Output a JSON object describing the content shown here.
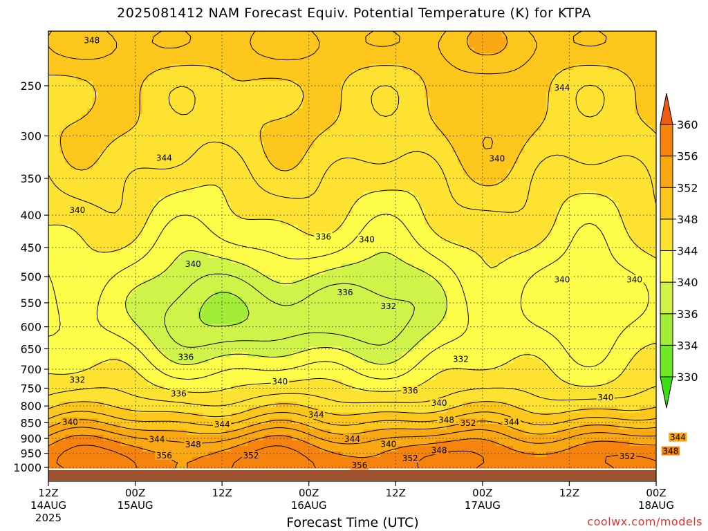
{
  "chart_data": {
    "type": "heatmap",
    "title": "2025081412 NAM Forecast Equiv. Potential Temperature (K) for KTPA",
    "xlabel": "Forecast Time (UTC)",
    "ylabel": "",
    "credit": "coolwx.com/models",
    "y_ticks": [
      250,
      300,
      350,
      400,
      450,
      500,
      550,
      600,
      650,
      700,
      750,
      800,
      850,
      900,
      950,
      1000
    ],
    "y_axis": "pressure, inverted, log-scaled",
    "x_ticks": [
      {
        "label": "12Z",
        "date": "14AUG",
        "year": "2025"
      },
      {
        "label": "00Z",
        "date": "15AUG",
        "year": ""
      },
      {
        "label": "12Z",
        "date": "",
        "year": ""
      },
      {
        "label": "00Z",
        "date": "16AUG",
        "year": ""
      },
      {
        "label": "12Z",
        "date": "",
        "year": ""
      },
      {
        "label": "00Z",
        "date": "17AUG",
        "year": ""
      },
      {
        "label": "12Z",
        "date": "",
        "year": ""
      },
      {
        "label": "00Z",
        "date": "18AUG",
        "year": ""
      }
    ],
    "grid": true,
    "colorbar": {
      "levels": [
        330,
        334,
        336,
        340,
        344,
        348,
        352,
        356,
        360
      ],
      "colors": [
        "#6ee826",
        "#a2ed37",
        "#d0f34a",
        "#fdfc48",
        "#fde232",
        "#fcc61d",
        "#f9a712",
        "#f5830e",
        "#ef5b10"
      ],
      "under_color": "#39df10"
    },
    "contour_labels": [
      {
        "text": "348",
        "time_h": 6,
        "p": 212
      },
      {
        "text": "344",
        "time_h": 71,
        "p": 252
      },
      {
        "text": "344",
        "time_h": 16,
        "p": 325
      },
      {
        "text": "340",
        "time_h": 62,
        "p": 326
      },
      {
        "text": "340",
        "time_h": 4,
        "p": 393
      },
      {
        "text": "336",
        "time_h": 38,
        "p": 433
      },
      {
        "text": "340",
        "time_h": 44,
        "p": 437
      },
      {
        "text": "340",
        "time_h": 20,
        "p": 478
      },
      {
        "text": "340",
        "time_h": 71,
        "p": 506
      },
      {
        "text": "340",
        "time_h": 81,
        "p": 506
      },
      {
        "text": "336",
        "time_h": 41,
        "p": 530
      },
      {
        "text": "332",
        "time_h": 47,
        "p": 557
      },
      {
        "text": "336",
        "time_h": 19,
        "p": 670
      },
      {
        "text": "332",
        "time_h": 57,
        "p": 675
      },
      {
        "text": "332",
        "time_h": 4,
        "p": 728
      },
      {
        "text": "340",
        "time_h": 32,
        "p": 732
      },
      {
        "text": "336",
        "time_h": 18,
        "p": 765
      },
      {
        "text": "336",
        "time_h": 50,
        "p": 757
      },
      {
        "text": "340",
        "time_h": 54,
        "p": 792
      },
      {
        "text": "340",
        "time_h": 77,
        "p": 776
      },
      {
        "text": "340",
        "time_h": 3,
        "p": 848
      },
      {
        "text": "344",
        "time_h": 24,
        "p": 856
      },
      {
        "text": "344",
        "time_h": 37,
        "p": 826
      },
      {
        "text": "348",
        "time_h": 55,
        "p": 842
      },
      {
        "text": "352",
        "time_h": 58,
        "p": 851
      },
      {
        "text": "344",
        "time_h": 64,
        "p": 848
      },
      {
        "text": "344",
        "time_h": 15,
        "p": 903
      },
      {
        "text": "348",
        "time_h": 20,
        "p": 921
      },
      {
        "text": "344",
        "time_h": 42,
        "p": 902
      },
      {
        "text": "340",
        "time_h": 47,
        "p": 919
      },
      {
        "text": "348",
        "time_h": 54,
        "p": 940
      },
      {
        "text": "344",
        "time_h": 87,
        "p": 897
      },
      {
        "text": "348",
        "time_h": 86,
        "p": 943
      },
      {
        "text": "356",
        "time_h": 16,
        "p": 958
      },
      {
        "text": "352",
        "time_h": 28,
        "p": 958
      },
      {
        "text": "356",
        "time_h": 43,
        "p": 993
      },
      {
        "text": "352",
        "time_h": 50,
        "p": 968
      },
      {
        "text": "352",
        "time_h": 80,
        "p": 961
      }
    ]
  }
}
